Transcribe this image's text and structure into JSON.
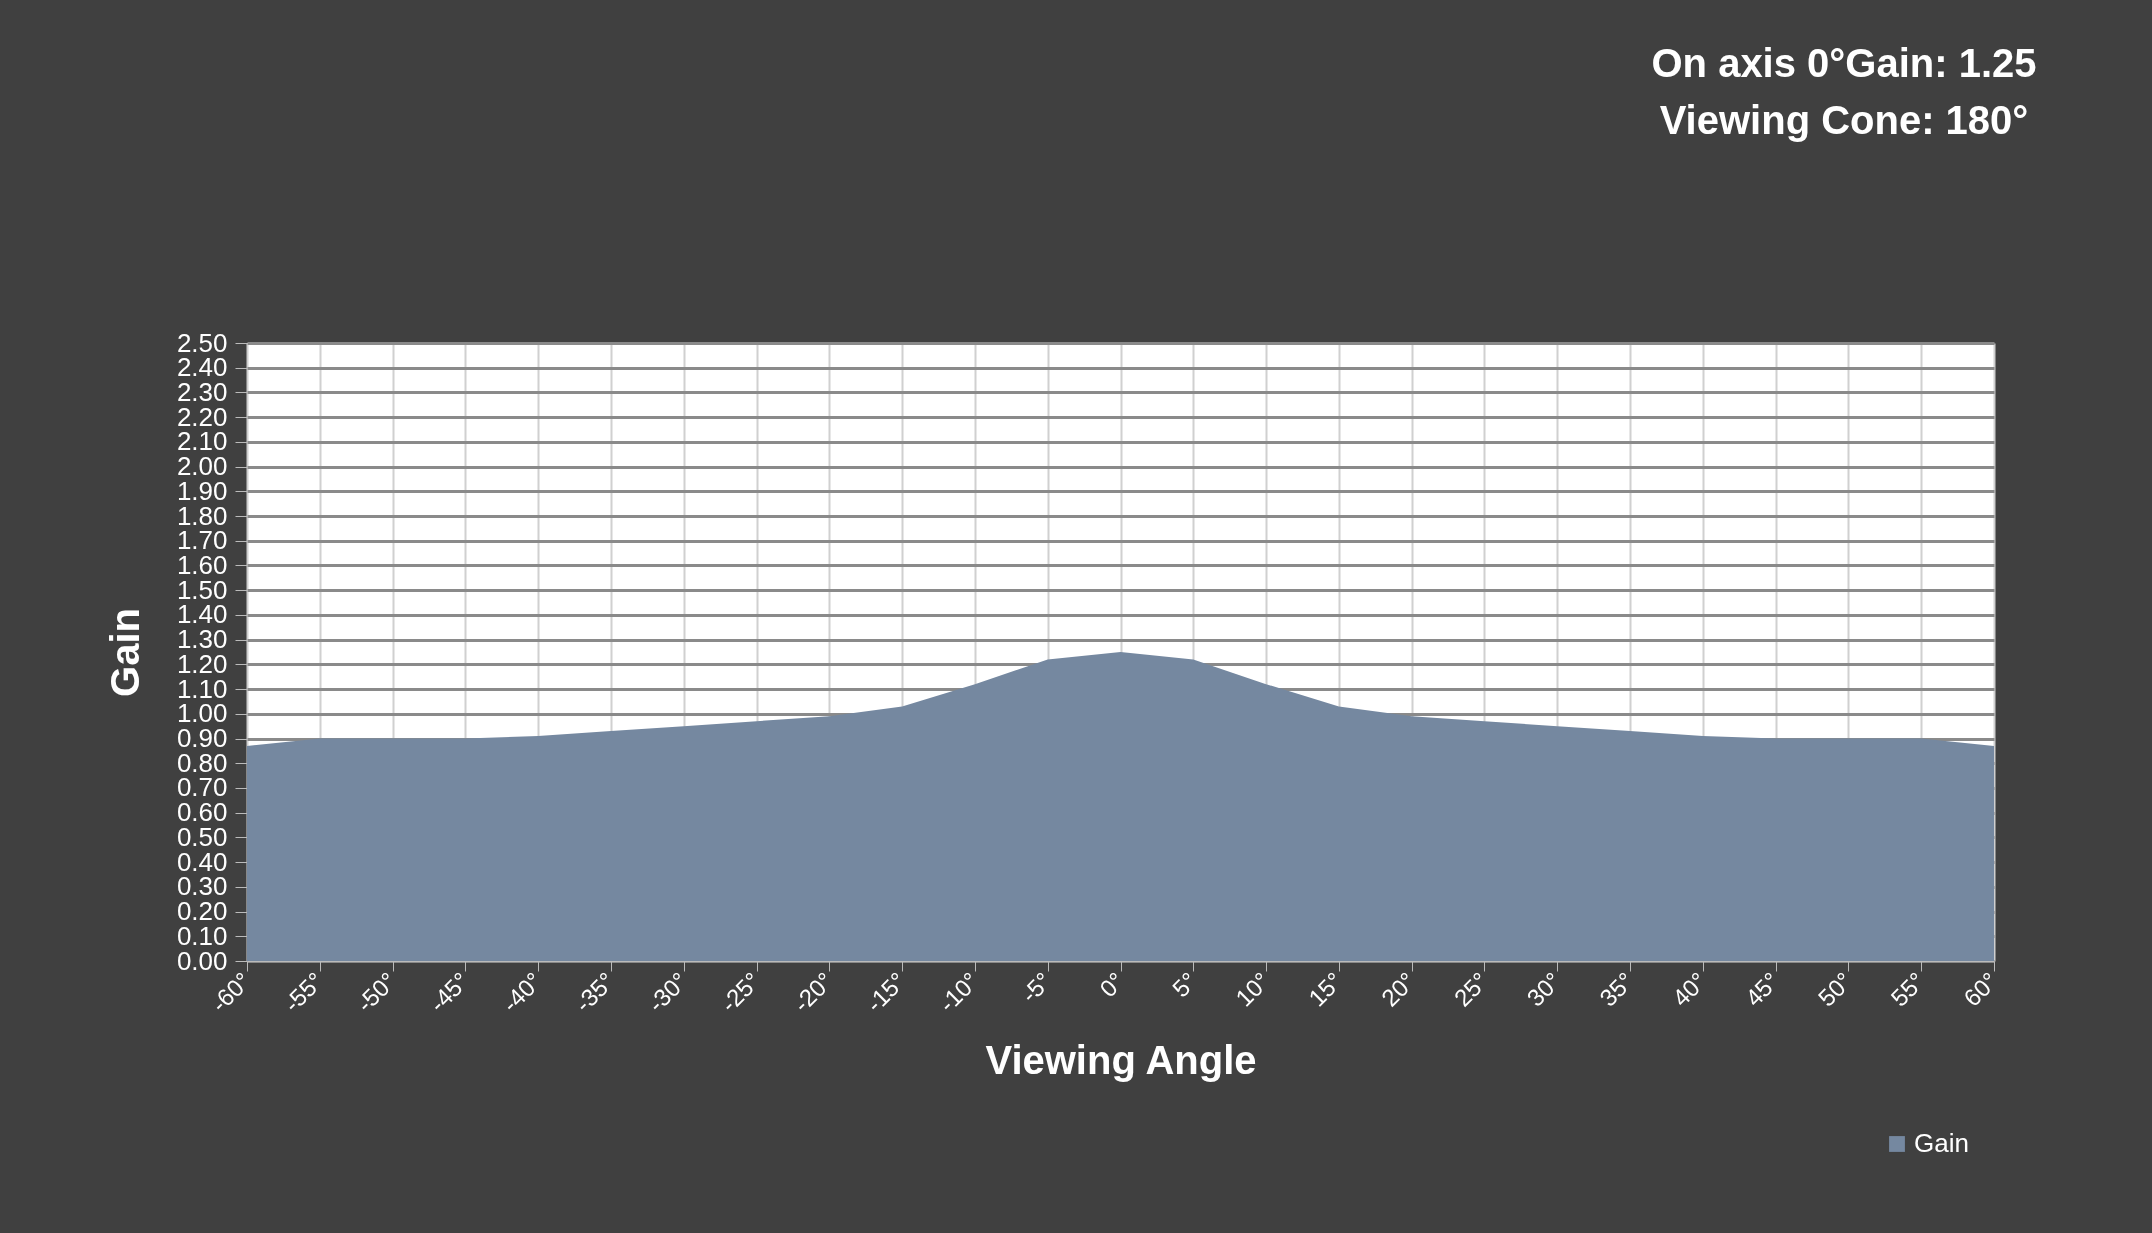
{
  "chart_data": {
    "type": "area",
    "annotations": [
      "On axis 0°Gain: 1.25",
      "Viewing Cone: 180°"
    ],
    "xlabel": "Viewing Angle",
    "ylabel": "Gain",
    "x": [
      -60,
      -55,
      -50,
      -45,
      -40,
      -35,
      -30,
      -25,
      -20,
      -15,
      -10,
      -5,
      0,
      5,
      10,
      15,
      20,
      25,
      30,
      35,
      40,
      45,
      50,
      55,
      60
    ],
    "series": [
      {
        "name": "Gain",
        "color": "#7588a0",
        "values": [
          0.87,
          0.9,
          0.9,
          0.9,
          0.91,
          0.93,
          0.95,
          0.97,
          0.99,
          1.03,
          1.12,
          1.22,
          1.25,
          1.22,
          1.12,
          1.03,
          0.99,
          0.97,
          0.95,
          0.93,
          0.91,
          0.9,
          0.9,
          0.9,
          0.87
        ]
      }
    ],
    "xlim": [
      -60,
      60
    ],
    "xticks": [
      {
        "value": -60,
        "label": "-60°"
      },
      {
        "value": -55,
        "label": "-55°"
      },
      {
        "value": -50,
        "label": "-50°"
      },
      {
        "value": -45,
        "label": "-45°"
      },
      {
        "value": -40,
        "label": "-40°"
      },
      {
        "value": -35,
        "label": "-35°"
      },
      {
        "value": -30,
        "label": "-30°"
      },
      {
        "value": -25,
        "label": "-25°"
      },
      {
        "value": -20,
        "label": "-20°"
      },
      {
        "value": -15,
        "label": "-15°"
      },
      {
        "value": -10,
        "label": "-10°"
      },
      {
        "value": -5,
        "label": "-5°"
      },
      {
        "value": 0,
        "label": "0°"
      },
      {
        "value": 5,
        "label": "5°"
      },
      {
        "value": 10,
        "label": "10°"
      },
      {
        "value": 15,
        "label": "15°"
      },
      {
        "value": 20,
        "label": "20°"
      },
      {
        "value": 25,
        "label": "25°"
      },
      {
        "value": 30,
        "label": "30°"
      },
      {
        "value": 35,
        "label": "35°"
      },
      {
        "value": 40,
        "label": "40°"
      },
      {
        "value": 45,
        "label": "45°"
      },
      {
        "value": 50,
        "label": "50°"
      },
      {
        "value": 55,
        "label": "55°"
      },
      {
        "value": 60,
        "label": "60°"
      }
    ],
    "ylim": [
      0,
      2.5
    ],
    "yticks": [
      {
        "value": 0,
        "label": "0.00"
      },
      {
        "value": 0.1,
        "label": "0.10"
      },
      {
        "value": 0.2,
        "label": "0.20"
      },
      {
        "value": 0.3,
        "label": "0.30"
      },
      {
        "value": 0.4,
        "label": "0.40"
      },
      {
        "value": 0.5,
        "label": "0.50"
      },
      {
        "value": 0.6,
        "label": "0.60"
      },
      {
        "value": 0.7,
        "label": "0.70"
      },
      {
        "value": 0.8,
        "label": "0.80"
      },
      {
        "value": 0.9,
        "label": "0.90"
      },
      {
        "value": 1.0,
        "label": "1.00"
      },
      {
        "value": 1.1,
        "label": "1.10"
      },
      {
        "value": 1.2,
        "label": "1.20"
      },
      {
        "value": 1.3,
        "label": "1.30"
      },
      {
        "value": 1.4,
        "label": "1.40"
      },
      {
        "value": 1.5,
        "label": "1.50"
      },
      {
        "value": 1.6,
        "label": "1.60"
      },
      {
        "value": 1.7,
        "label": "1.70"
      },
      {
        "value": 1.8,
        "label": "1.80"
      },
      {
        "value": 1.9,
        "label": "1.90"
      },
      {
        "value": 2.0,
        "label": "2.00"
      },
      {
        "value": 2.1,
        "label": "2.10"
      },
      {
        "value": 2.2,
        "label": "2.20"
      },
      {
        "value": 2.3,
        "label": "2.30"
      },
      {
        "value": 2.4,
        "label": "2.40"
      },
      {
        "value": 2.5,
        "label": "2.50"
      }
    ],
    "grid": true,
    "legend": "bottom right"
  }
}
